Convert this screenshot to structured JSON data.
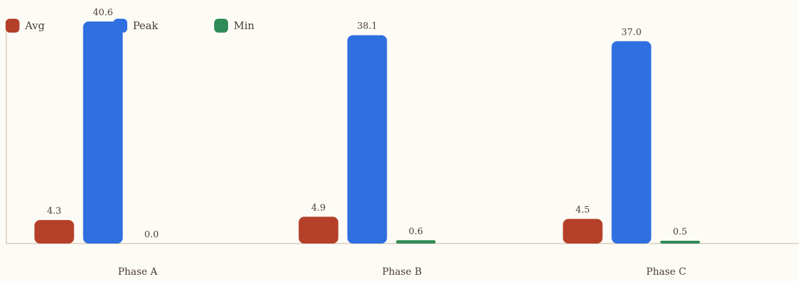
{
  "chart_data": {
    "type": "bar",
    "title": "",
    "xlabel": "",
    "ylabel": "",
    "categories": [
      "Phase A",
      "Phase B",
      "Phase C"
    ],
    "series": [
      {
        "name": "Avg",
        "color": "#b5402a",
        "values": [
          4.3,
          4.9,
          4.5
        ],
        "labels": [
          "4.3",
          "4.9",
          "4.5"
        ]
      },
      {
        "name": "Peak",
        "color": "#2f6fe0",
        "values": [
          40.6,
          38.1,
          37.0
        ],
        "labels": [
          "40.6",
          "38.1",
          "37.0"
        ]
      },
      {
        "name": "Min",
        "color": "#2e8b57",
        "values": [
          0.0,
          0.6,
          0.5
        ],
        "labels": [
          "0.0",
          "0.6",
          "0.5"
        ]
      }
    ],
    "ylim": [
      0,
      40.6
    ],
    "grid": false,
    "legend_position": "top-left"
  },
  "colors": {
    "background": "#fdfbf6",
    "axis": "#c9b3a3",
    "text": "#4a3b35"
  }
}
